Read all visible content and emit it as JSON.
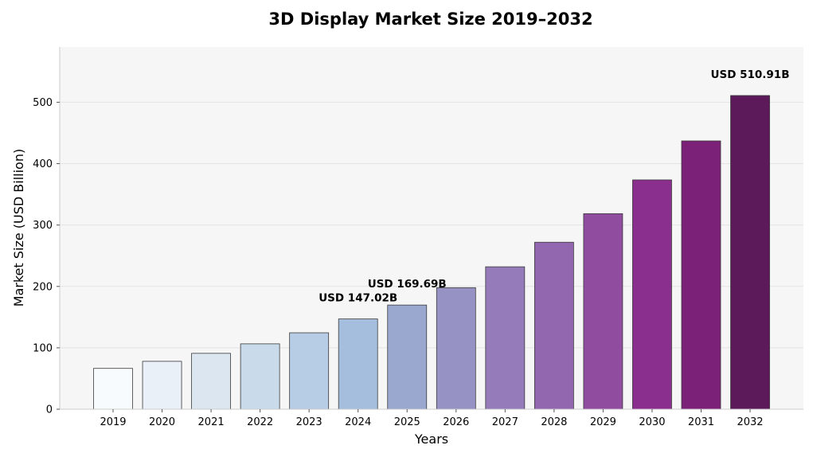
{
  "chart_data": {
    "type": "bar",
    "title": "3D Display Market Size 2019–2032",
    "xlabel": "Years",
    "ylabel": "Market Size (USD Billion)",
    "categories": [
      "2019",
      "2020",
      "2021",
      "2022",
      "2023",
      "2024",
      "2025",
      "2026",
      "2027",
      "2028",
      "2029",
      "2030",
      "2031",
      "2032"
    ],
    "values": [
      66.5,
      78.0,
      91.0,
      106.5,
      124.5,
      147.02,
      169.69,
      198.0,
      232.0,
      272.0,
      318.5,
      373.5,
      437.0,
      510.91
    ],
    "ylim": [
      0,
      590
    ],
    "yticks": [
      0,
      100,
      200,
      300,
      400,
      500
    ],
    "grid": true,
    "bar_colors": [
      "#f7fbfd",
      "#e9f0f7",
      "#dce6f1",
      "#c9dbea",
      "#b6cde5",
      "#a6bedd",
      "#9aa8d0",
      "#9692c4",
      "#957bba",
      "#9366b0",
      "#904c9f",
      "#8b2f8f",
      "#7b2177",
      "#5c1a5b"
    ],
    "annotations": [
      {
        "category": "2024",
        "text": "USD 147.02B"
      },
      {
        "category": "2025",
        "text": "USD 169.69B"
      },
      {
        "category": "2032",
        "text": "USD 510.91B"
      }
    ]
  }
}
